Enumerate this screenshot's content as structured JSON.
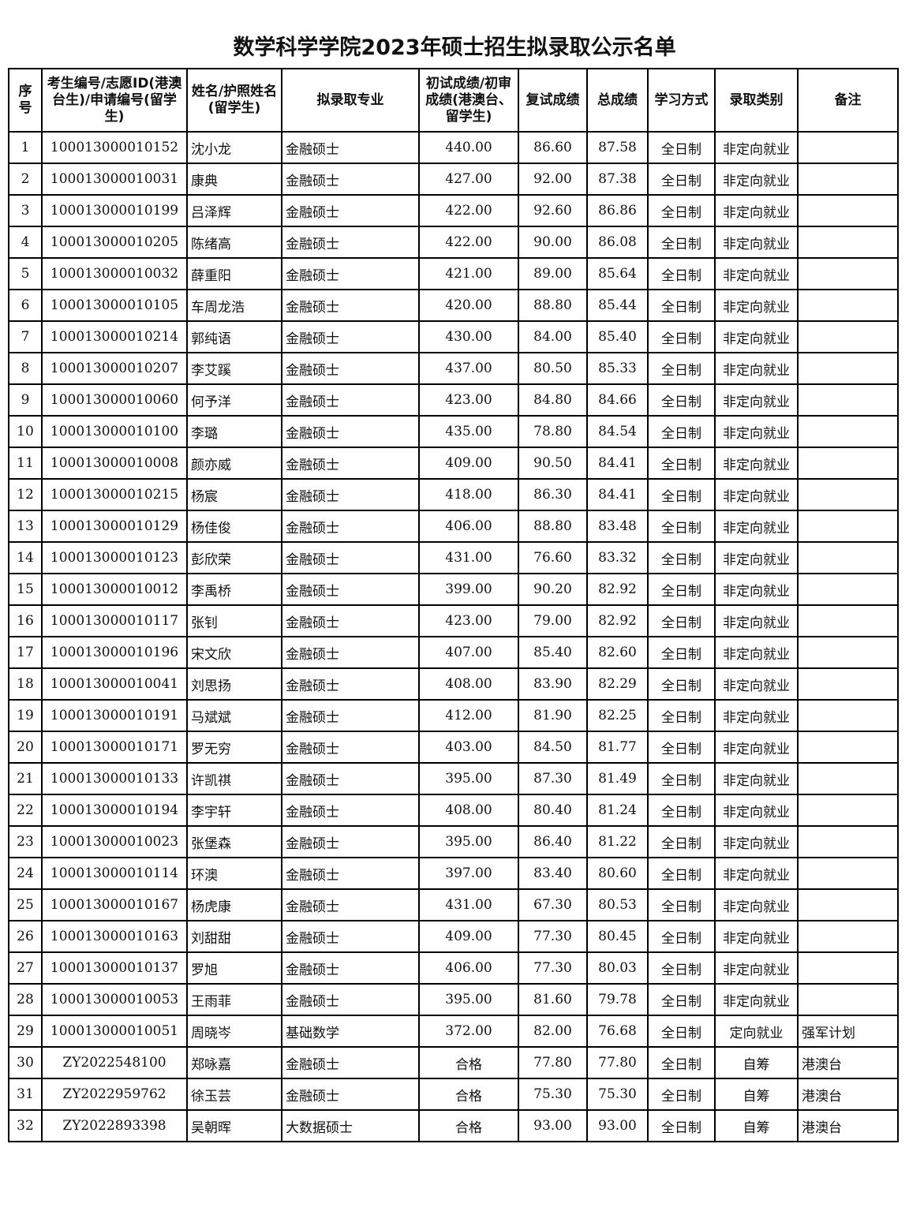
{
  "title": "数学科学学院2023年硕士招生拟录取公示名单",
  "headers": [
    "序号",
    "考生编号/志愿ID(港澳台生)/申请编号(留学生)",
    "姓名/护照姓名(留学生)",
    "拟录取专业",
    "初试成绩/初审成绩(港澳台、留学生)",
    "复试成绩",
    "总成绩",
    "学习方式",
    "录取类别",
    "备注"
  ],
  "rows": [
    [
      "1",
      "100013000010152",
      "沈小龙",
      "金融硕士",
      "440.00",
      "86.60",
      "87.58",
      "全日制",
      "非定向就业",
      ""
    ],
    [
      "2",
      "100013000010031",
      "康典",
      "金融硕士",
      "427.00",
      "92.00",
      "87.38",
      "全日制",
      "非定向就业",
      ""
    ],
    [
      "3",
      "100013000010199",
      "吕泽辉",
      "金融硕士",
      "422.00",
      "92.60",
      "86.86",
      "全日制",
      "非定向就业",
      ""
    ],
    [
      "4",
      "100013000010205",
      "陈绪高",
      "金融硕士",
      "422.00",
      "90.00",
      "86.08",
      "全日制",
      "非定向就业",
      ""
    ],
    [
      "5",
      "100013000010032",
      "薛重阳",
      "金融硕士",
      "421.00",
      "89.00",
      "85.64",
      "全日制",
      "非定向就业",
      ""
    ],
    [
      "6",
      "100013000010105",
      "车周龙浩",
      "金融硕士",
      "420.00",
      "88.80",
      "85.44",
      "全日制",
      "非定向就业",
      ""
    ],
    [
      "7",
      "100013000010214",
      "郭纯语",
      "金融硕士",
      "430.00",
      "84.00",
      "85.40",
      "全日制",
      "非定向就业",
      ""
    ],
    [
      "8",
      "100013000010207",
      "李艾蹊",
      "金融硕士",
      "437.00",
      "80.50",
      "85.33",
      "全日制",
      "非定向就业",
      ""
    ],
    [
      "9",
      "100013000010060",
      "何予洋",
      "金融硕士",
      "423.00",
      "84.80",
      "84.66",
      "全日制",
      "非定向就业",
      ""
    ],
    [
      "10",
      "100013000010100",
      "李璐",
      "金融硕士",
      "435.00",
      "78.80",
      "84.54",
      "全日制",
      "非定向就业",
      ""
    ],
    [
      "11",
      "100013000010008",
      "颜亦威",
      "金融硕士",
      "409.00",
      "90.50",
      "84.41",
      "全日制",
      "非定向就业",
      ""
    ],
    [
      "12",
      "100013000010215",
      "杨宸",
      "金融硕士",
      "418.00",
      "86.30",
      "84.41",
      "全日制",
      "非定向就业",
      ""
    ],
    [
      "13",
      "100013000010129",
      "杨佳俊",
      "金融硕士",
      "406.00",
      "88.80",
      "83.48",
      "全日制",
      "非定向就业",
      ""
    ],
    [
      "14",
      "100013000010123",
      "彭欣荣",
      "金融硕士",
      "431.00",
      "76.60",
      "83.32",
      "全日制",
      "非定向就业",
      ""
    ],
    [
      "15",
      "100013000010012",
      "李禹桥",
      "金融硕士",
      "399.00",
      "90.20",
      "82.92",
      "全日制",
      "非定向就业",
      ""
    ],
    [
      "16",
      "100013000010117",
      "张钊",
      "金融硕士",
      "423.00",
      "79.00",
      "82.92",
      "全日制",
      "非定向就业",
      ""
    ],
    [
      "17",
      "100013000010196",
      "宋文欣",
      "金融硕士",
      "407.00",
      "85.40",
      "82.60",
      "全日制",
      "非定向就业",
      ""
    ],
    [
      "18",
      "100013000010041",
      "刘思扬",
      "金融硕士",
      "408.00",
      "83.90",
      "82.29",
      "全日制",
      "非定向就业",
      ""
    ],
    [
      "19",
      "100013000010191",
      "马斌斌",
      "金融硕士",
      "412.00",
      "81.90",
      "82.25",
      "全日制",
      "非定向就业",
      ""
    ],
    [
      "20",
      "100013000010171",
      "罗无穷",
      "金融硕士",
      "403.00",
      "84.50",
      "81.77",
      "全日制",
      "非定向就业",
      ""
    ],
    [
      "21",
      "100013000010133",
      "许凯祺",
      "金融硕士",
      "395.00",
      "87.30",
      "81.49",
      "全日制",
      "非定向就业",
      ""
    ],
    [
      "22",
      "100013000010194",
      "李宇轩",
      "金融硕士",
      "408.00",
      "80.40",
      "81.24",
      "全日制",
      "非定向就业",
      ""
    ],
    [
      "23",
      "100013000010023",
      "张堡森",
      "金融硕士",
      "395.00",
      "86.40",
      "81.22",
      "全日制",
      "非定向就业",
      ""
    ],
    [
      "24",
      "100013000010114",
      "环澳",
      "金融硕士",
      "397.00",
      "83.40",
      "80.60",
      "全日制",
      "非定向就业",
      ""
    ],
    [
      "25",
      "100013000010167",
      "杨虎康",
      "金融硕士",
      "431.00",
      "67.30",
      "80.53",
      "全日制",
      "非定向就业",
      ""
    ],
    [
      "26",
      "100013000010163",
      "刘甜甜",
      "金融硕士",
      "409.00",
      "77.30",
      "80.45",
      "全日制",
      "非定向就业",
      ""
    ],
    [
      "27",
      "100013000010137",
      "罗旭",
      "金融硕士",
      "406.00",
      "77.30",
      "80.03",
      "全日制",
      "非定向就业",
      ""
    ],
    [
      "28",
      "100013000010053",
      "王雨菲",
      "金融硕士",
      "395.00",
      "81.60",
      "79.78",
      "全日制",
      "非定向就业",
      ""
    ],
    [
      "29",
      "100013000010051",
      "周晓岑",
      "基础数学",
      "372.00",
      "82.00",
      "76.68",
      "全日制",
      "定向就业",
      "强军计划"
    ],
    [
      "30",
      "ZY2022548100",
      "郑咏嘉",
      "金融硕士",
      "合格",
      "77.80",
      "77.80",
      "全日制",
      "自筹",
      "港澳台"
    ],
    [
      "31",
      "ZY2022959762",
      "徐玉芸",
      "金融硕士",
      "合格",
      "75.30",
      "75.30",
      "全日制",
      "自筹",
      "港澳台"
    ],
    [
      "32",
      "ZY2022893398",
      "吴朝晖",
      "大数据硕士",
      "合格",
      "93.00",
      "93.00",
      "全日制",
      "自筹",
      "港澳台"
    ]
  ]
}
